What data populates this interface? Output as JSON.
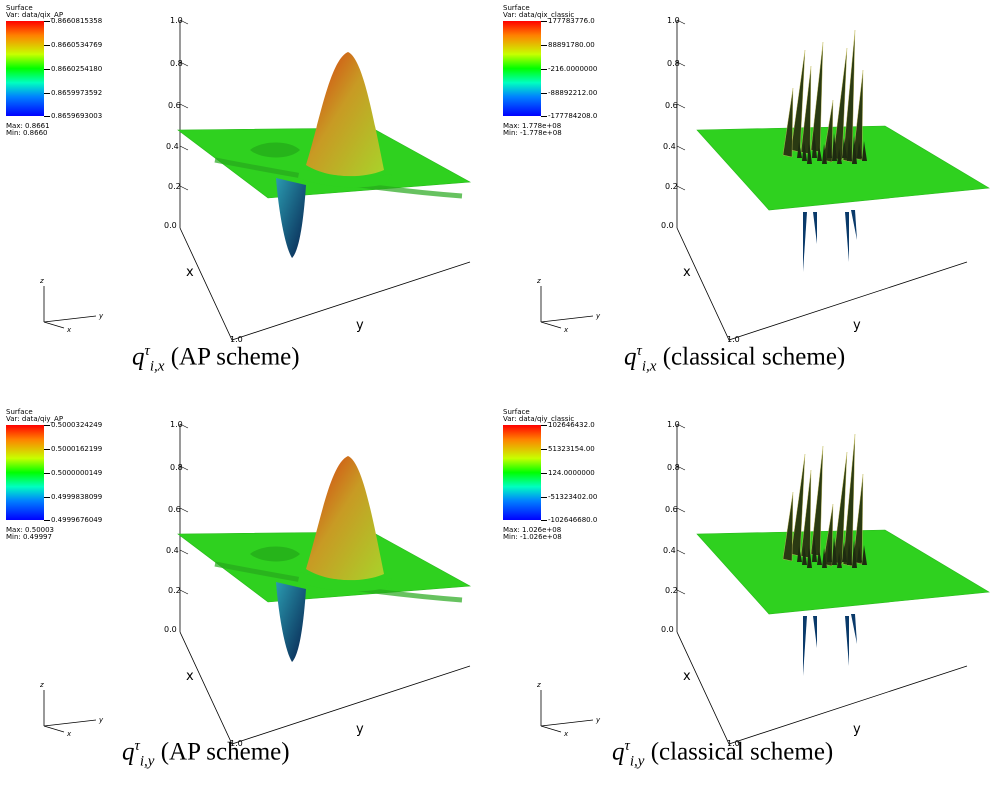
{
  "panels": [
    {
      "legend": {
        "title": "Surface",
        "var": "Var: data/qix_AP",
        "ticks": [
          "0.8660815358",
          "0.8660534769",
          "0.8660254180",
          "0.8659973592",
          "0.8659693003"
        ],
        "max": "Max: 0.8661",
        "min": "Min: 0.8660"
      },
      "axis": {
        "z_ticks": [
          "1.0",
          "0.8",
          "0.6",
          "0.4",
          "0.2",
          "0.0"
        ],
        "x_label": "x",
        "y_label": "y",
        "corner_tick": "1.0"
      },
      "triad": {
        "z": "z",
        "y": "y",
        "x": "x"
      },
      "caption": {
        "q": "q",
        "sup": "τ",
        "sub": "i,x",
        "text": " (AP scheme)"
      }
    },
    {
      "legend": {
        "title": "Surface",
        "var": "Var: data/qix_classic",
        "ticks": [
          "177783776.0",
          "88891780.00",
          "-216.0000000",
          "-88892212.00",
          "-177784208.0"
        ],
        "max": "Max: 1.778e+08",
        "min": "Min: -1.778e+08"
      },
      "axis": {
        "z_ticks": [
          "1.0",
          "0.8",
          "0.6",
          "0.4",
          "0.2",
          "0.0"
        ],
        "x_label": "x",
        "y_label": "y",
        "corner_tick": "1.0"
      },
      "triad": {
        "z": "z",
        "y": "y",
        "x": "x"
      },
      "caption": {
        "q": "q",
        "sup": "τ",
        "sub": "i,x",
        "text": " (classical scheme)"
      }
    },
    {
      "legend": {
        "title": "Surface",
        "var": "Var: data/qiy_AP",
        "ticks": [
          "0.5000324249",
          "0.5000162199",
          "0.5000000149",
          "0.4999838099",
          "0.4999676049"
        ],
        "max": "Max: 0.50003",
        "min": "Min: 0.49997"
      },
      "axis": {
        "z_ticks": [
          "1.0",
          "0.8",
          "0.6",
          "0.4",
          "0.2",
          "0.0"
        ],
        "x_label": "x",
        "y_label": "y",
        "corner_tick": "1.0"
      },
      "triad": {
        "z": "z",
        "y": "y",
        "x": "x"
      },
      "caption": {
        "q": "q",
        "sup": "τ",
        "sub": "i,y",
        "text": " (AP scheme)"
      }
    },
    {
      "legend": {
        "title": "Surface",
        "var": "Var: data/qiy_classic",
        "ticks": [
          "102646432.0",
          "51323154.00",
          "124.0000000",
          "-51323402.00",
          "-102646680.0"
        ],
        "max": "Max: 1.026e+08",
        "min": "Min: -1.026e+08"
      },
      "axis": {
        "z_ticks": [
          "1.0",
          "0.8",
          "0.6",
          "0.4",
          "0.2",
          "0.0"
        ],
        "x_label": "x",
        "y_label": "y",
        "corner_tick": "1.0"
      },
      "triad": {
        "z": "z",
        "y": "y",
        "x": "x"
      },
      "caption": {
        "q": "q",
        "sup": "τ",
        "sub": "i,y",
        "text": " (classical scheme)"
      }
    }
  ],
  "colors": {
    "surface_green": "#2fd11f",
    "peak_top": "#c03a10",
    "peak_mid": "#c8b22a",
    "trough": "#0a3a78",
    "spike": "#2a3a12"
  }
}
